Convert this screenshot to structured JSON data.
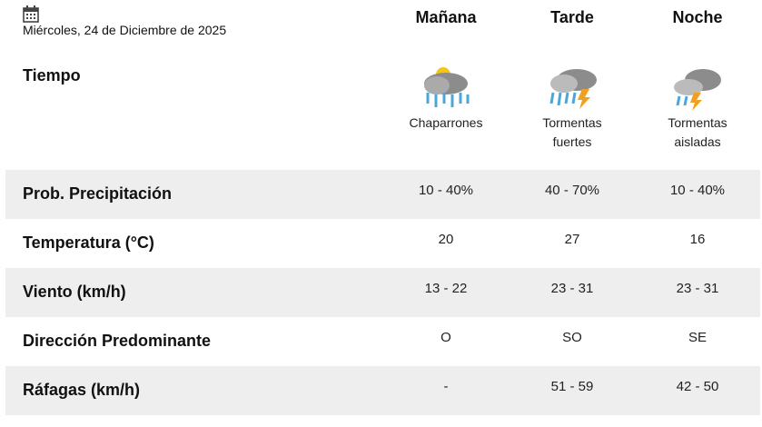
{
  "header": {
    "date": "Miércoles, 24 de Diciembre de 2025",
    "columns": [
      "Mañana",
      "Tarde",
      "Noche"
    ]
  },
  "weather": {
    "label": "Tiempo",
    "conditions": [
      "Chaparrones",
      "Tormentas fuertes",
      "Tormentas aisladas"
    ]
  },
  "table": {
    "rows": [
      {
        "label": "Prob. Precipitación",
        "values": [
          "10 - 40%",
          "40 - 70%",
          "10 - 40%"
        ]
      },
      {
        "label": "Temperatura (°C)",
        "values": [
          "20",
          "27",
          "16"
        ]
      },
      {
        "label": "Viento (km/h)",
        "values": [
          "13 - 22",
          "23 - 31",
          "23 - 31"
        ]
      },
      {
        "label": "Dirección Predominante",
        "values": [
          "O",
          "SO",
          "SE"
        ]
      },
      {
        "label": "Ráfagas (km/h)",
        "values": [
          "-",
          "51 - 59",
          "42 - 50"
        ]
      }
    ]
  }
}
